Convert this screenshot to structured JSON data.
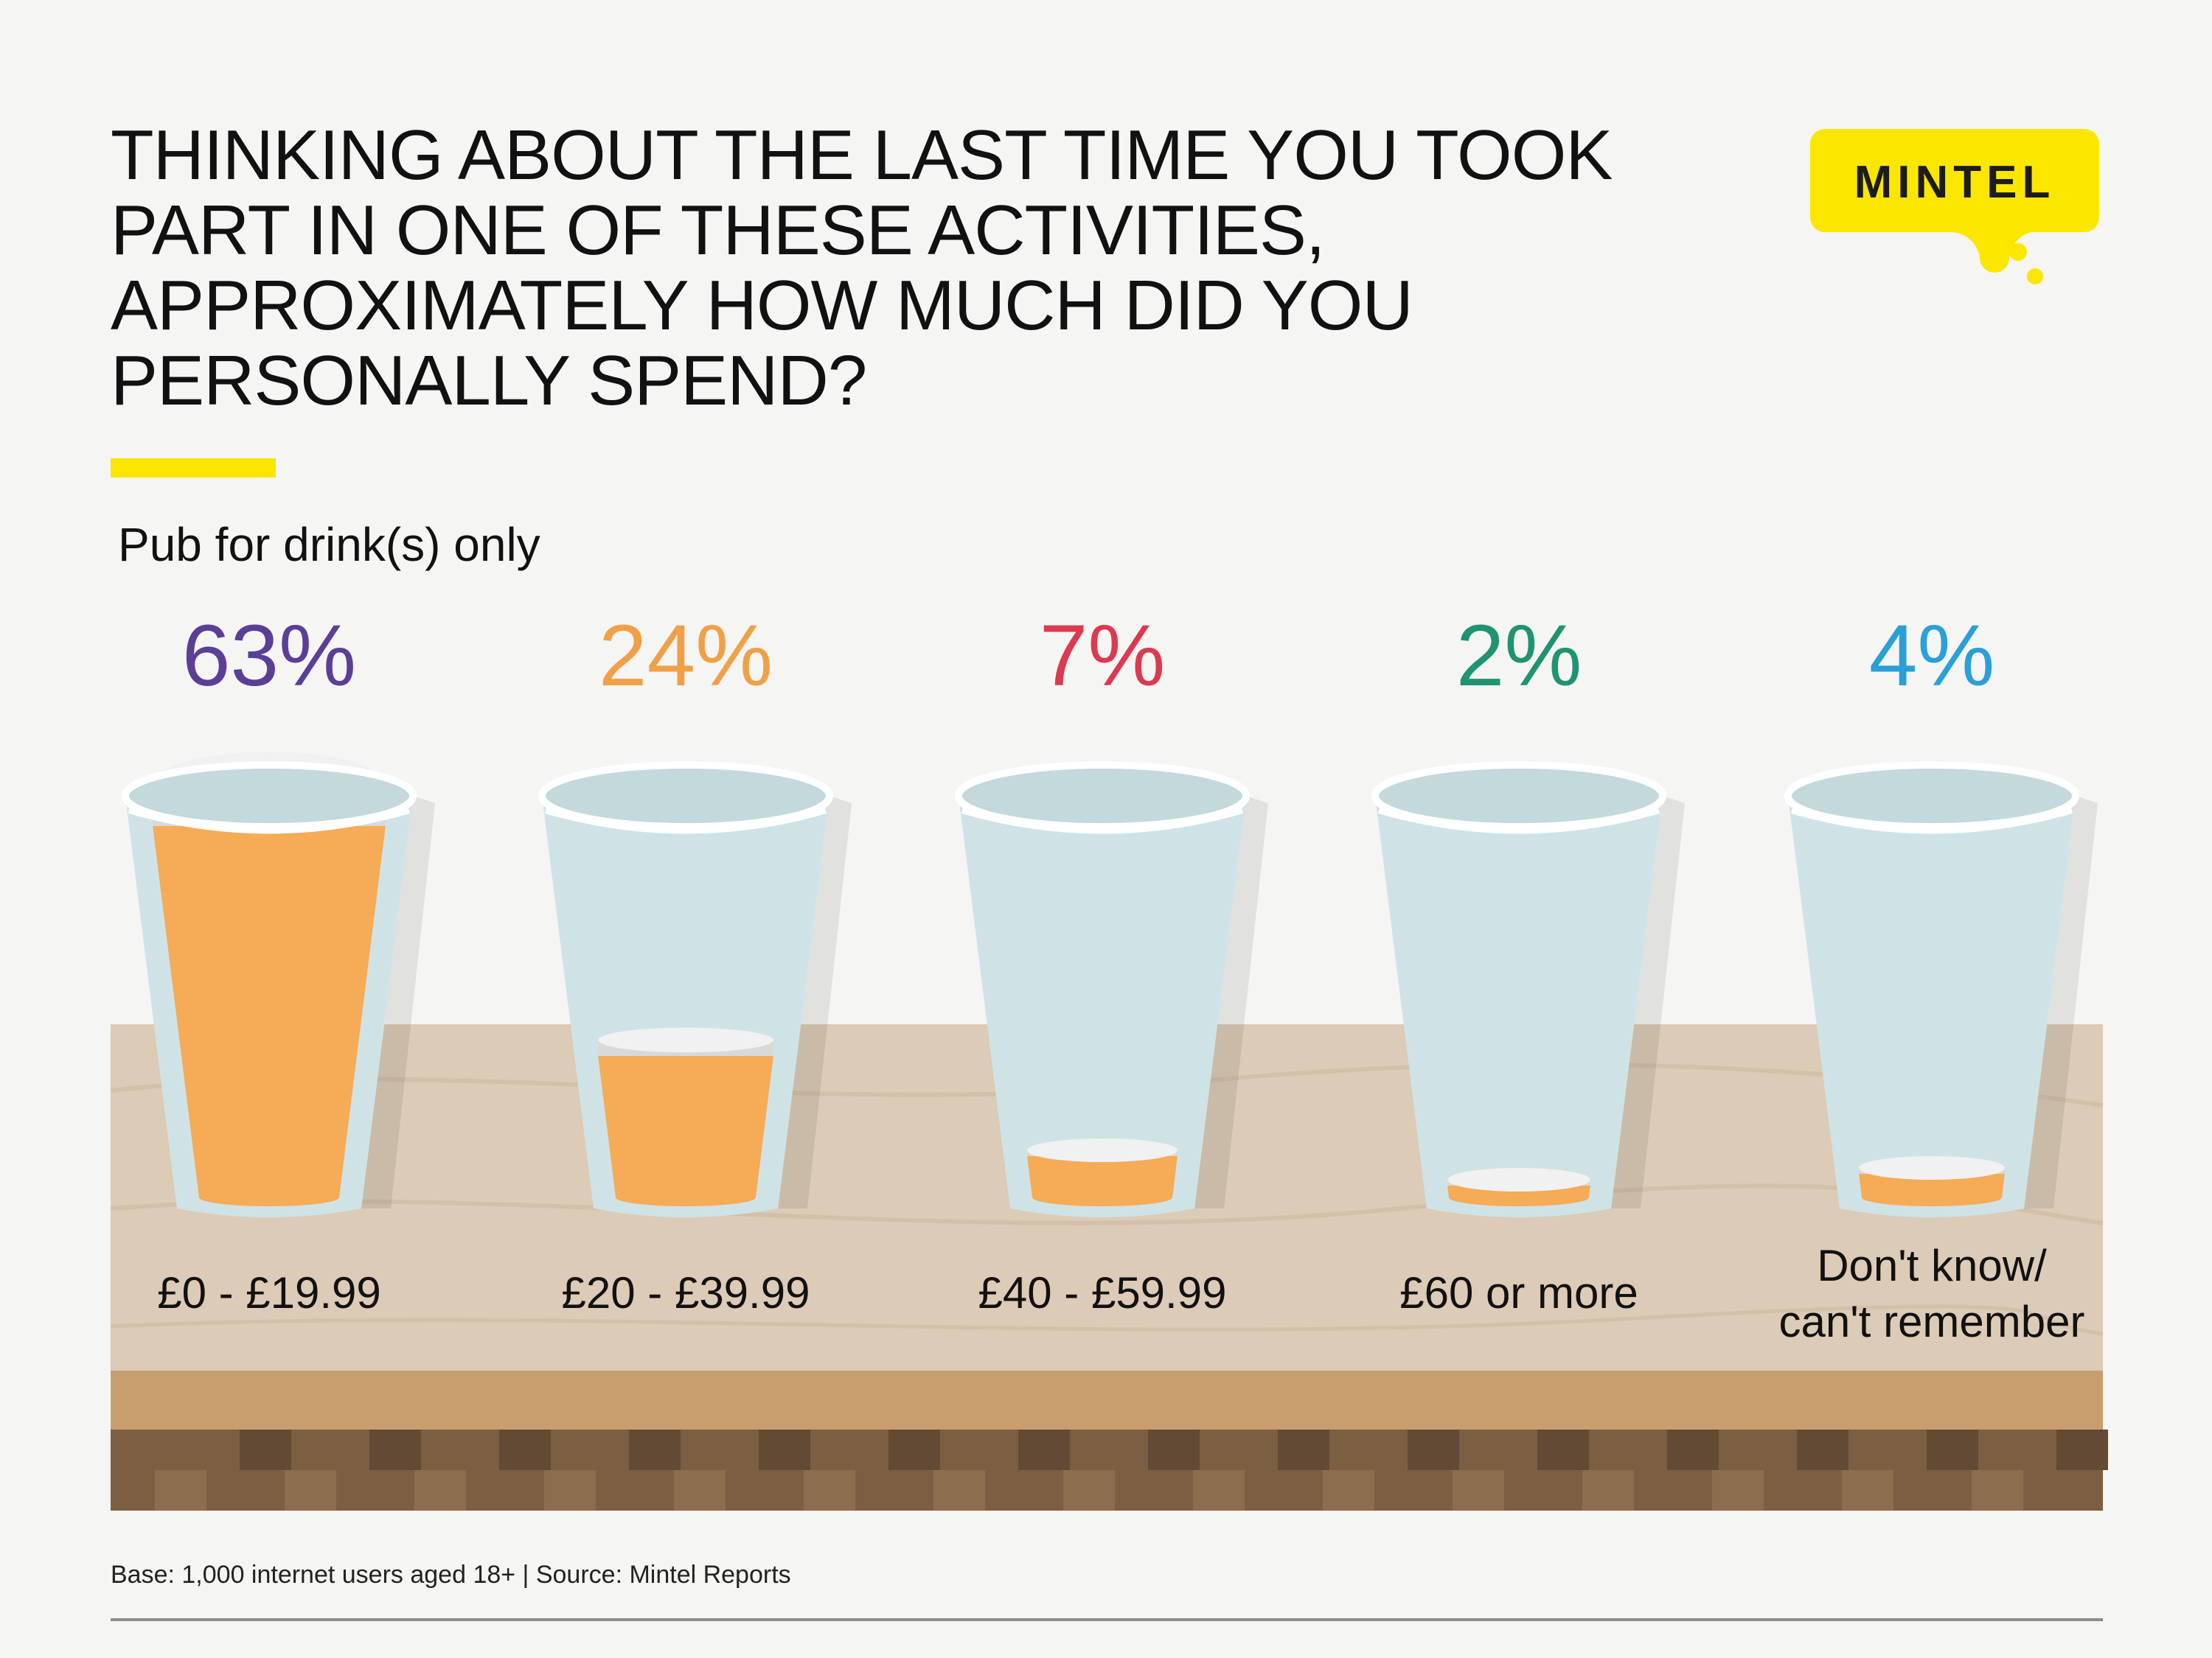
{
  "header": {
    "title": "THINKING ABOUT THE LAST TIME YOU TOOK PART IN ONE OF THESE ACTIVITIES, APPROXIMATELY HOW MUCH DID YOU PERSONALLY SPEND?",
    "logo_text": "MINTEL"
  },
  "chart_data": {
    "type": "bar",
    "title": "THINKING ABOUT THE LAST TIME YOU TOOK PART IN ONE OF THESE ACTIVITIES, APPROXIMATELY HOW MUCH DID YOU PERSONALLY SPEND?",
    "subtitle": "Pub for drink(s) only",
    "categories": [
      "£0 - £19.99",
      "£20 - £39.99",
      "£40 - £59.99",
      "£60 or more",
      "Don't know/ can't remember"
    ],
    "category_lines": [
      [
        "£0 - £19.99"
      ],
      [
        "£20 - £39.99"
      ],
      [
        "£40 - £59.99"
      ],
      [
        "£60 or more"
      ],
      [
        "Don't know/",
        "can't remember"
      ]
    ],
    "values": [
      63,
      24,
      7,
      2,
      4
    ],
    "value_labels": [
      "63%",
      "24%",
      "7%",
      "2%",
      "4%"
    ],
    "value_colors": [
      "#5b3f97",
      "#f0a048",
      "#dc3a4f",
      "#1f9372",
      "#2a9fd8"
    ],
    "unit": "%",
    "ylim": [
      0,
      100
    ],
    "xlabel": "",
    "ylabel": ""
  },
  "colors": {
    "accent_yellow": "#fbe600",
    "beer": "#f6ab56",
    "foam": "#f1f1f1",
    "glass": "#cfe3e6",
    "table_top": "#dccbb7"
  },
  "footer": {
    "source": "Base: 1,000 internet users aged 18+ | Source: Mintel Reports"
  }
}
